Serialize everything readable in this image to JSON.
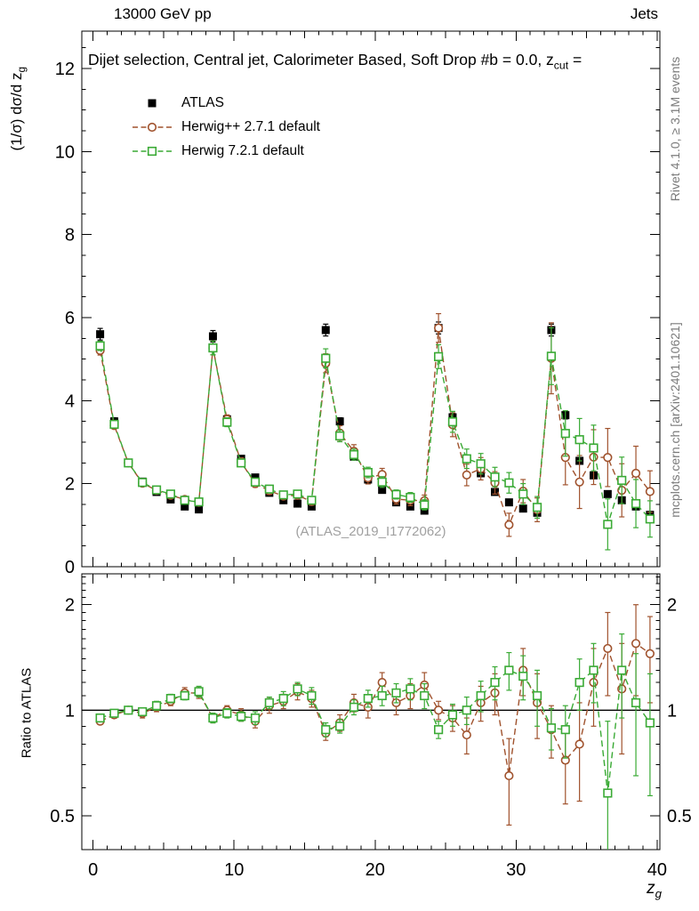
{
  "header": {
    "left": "13000 GeV pp",
    "right": "Jets"
  },
  "title": {
    "text": "Dijet selection, Central jet, Calorimeter Based, Soft Drop #b = 0.0, z",
    "sub": "cut",
    "tail": " ="
  },
  "axis_labels": {
    "y_main": "(1/σ) dσ/d z",
    "y_main_sub": "g",
    "ratio": "Ratio to ATLAS",
    "x": "z",
    "x_sub": "g"
  },
  "side_texts": {
    "top": "Rivet 4.1.0, ≥ 3.1M events",
    "bottom": "mcplots.cern.ch [arXiv:2401.10621]"
  },
  "watermark": "(ATLAS_2019_I1772062)",
  "legend": {
    "items": [
      {
        "label": "ATLAS",
        "marker": "filled-square",
        "color": "#000000"
      },
      {
        "label": "Herwig++ 2.7.1 default",
        "marker": "open-circle",
        "color": "#a0522d",
        "line": "dashed"
      },
      {
        "label": "Herwig 7.2.1 default",
        "marker": "open-square",
        "color": "#3aaa35",
        "line": "dashed"
      }
    ]
  },
  "chart_data": {
    "type": "line",
    "title": "Dijet selection, Central jet, Calorimeter Based, Soft Drop #b = 0.0, z_cut",
    "xlabel": "z_g",
    "ylabel": "(1/σ) dσ/d z_g",
    "ratio_label": "Ratio to ATLAS",
    "legend_position": "upper-left",
    "x": [
      0.5,
      1.5,
      2.5,
      3.5,
      4.5,
      5.5,
      6.5,
      7.5,
      8.5,
      9.5,
      10.5,
      11.5,
      12.5,
      13.5,
      14.5,
      15.5,
      16.5,
      17.5,
      18.5,
      19.5,
      20.5,
      21.5,
      22.5,
      23.5,
      24.5,
      25.5,
      26.5,
      27.5,
      28.5,
      29.5,
      30.5,
      31.5,
      32.5,
      33.5,
      34.5,
      35.5,
      36.5,
      37.5,
      38.5,
      39.5
    ],
    "axes": {
      "x": {
        "lim": [
          -0.8,
          40.2
        ],
        "ticks": [
          0,
          10,
          20,
          30,
          40
        ]
      },
      "main": {
        "scale": "linear",
        "lim": [
          0,
          12.9
        ],
        "ticks": [
          0,
          2,
          4,
          6,
          8,
          10,
          12
        ]
      },
      "ratio": {
        "scale": "log",
        "lim": [
          0.4,
          2.45
        ],
        "ticks": [
          0.5,
          1,
          2
        ],
        "tick_labels": [
          "0.5",
          "1",
          "2"
        ],
        "minor": [
          0.4,
          0.6,
          0.7,
          0.8,
          0.9,
          1.1,
          1.2,
          1.3,
          1.4,
          1.5,
          1.6,
          1.7,
          1.8,
          1.9,
          2.1,
          2.2,
          2.3,
          2.4
        ]
      }
    },
    "series": [
      {
        "name": "ATLAS",
        "marker": "filled-square",
        "color": "#000000",
        "err_frac": 0.025,
        "values": [
          5.6,
          3.5,
          2.5,
          2.05,
          1.8,
          1.62,
          1.45,
          1.38,
          5.55,
          3.55,
          2.6,
          2.15,
          1.78,
          1.6,
          1.52,
          1.45,
          5.7,
          3.5,
          2.65,
          2.1,
          1.85,
          1.55,
          1.45,
          1.35,
          5.75,
          3.6,
          2.6,
          2.25,
          1.8,
          1.55,
          1.4,
          1.3,
          5.7,
          3.65,
          2.55,
          2.2,
          1.75,
          1.6,
          1.45,
          1.25
        ]
      },
      {
        "name": "Herwig++ 2.7.1 default",
        "marker": "open-circle",
        "color": "#a0522d",
        "line": "dashed",
        "values": [
          5.21,
          3.4,
          2.5,
          2.01,
          1.84,
          1.72,
          1.62,
          1.55,
          5.27,
          3.55,
          2.52,
          2.0,
          1.83,
          1.7,
          1.72,
          1.57,
          4.9,
          3.22,
          2.78,
          2.14,
          2.22,
          1.63,
          1.6,
          1.59,
          5.75,
          3.42,
          2.21,
          2.36,
          2.02,
          1.01,
          1.82,
          1.37,
          5.02,
          2.63,
          2.04,
          2.64,
          2.63,
          1.84,
          2.25,
          1.81
        ],
        "ratio": [
          0.93,
          0.97,
          1.0,
          0.98,
          1.02,
          1.06,
          1.12,
          1.12,
          0.95,
          1.0,
          0.97,
          0.93,
          1.03,
          1.06,
          1.13,
          1.08,
          0.86,
          0.92,
          1.05,
          1.02,
          1.2,
          1.05,
          1.1,
          1.18,
          1.0,
          0.95,
          0.85,
          1.05,
          1.12,
          0.65,
          1.3,
          1.05,
          0.88,
          0.72,
          0.8,
          1.2,
          1.5,
          1.15,
          1.55,
          1.45
        ],
        "ratio_err": [
          0.02,
          0.02,
          0.02,
          0.03,
          0.03,
          0.03,
          0.04,
          0.04,
          0.03,
          0.03,
          0.04,
          0.04,
          0.05,
          0.05,
          0.06,
          0.06,
          0.04,
          0.05,
          0.06,
          0.07,
          0.08,
          0.08,
          0.09,
          0.1,
          0.06,
          0.08,
          0.1,
          0.12,
          0.15,
          0.18,
          0.2,
          0.22,
          0.15,
          0.18,
          0.25,
          0.3,
          0.4,
          0.4,
          0.45,
          0.4
        ]
      },
      {
        "name": "Herwig 7.2.1 default",
        "marker": "open-square",
        "color": "#3aaa35",
        "line": "dashed",
        "values": [
          5.32,
          3.43,
          2.5,
          2.03,
          1.85,
          1.75,
          1.6,
          1.56,
          5.27,
          3.48,
          2.5,
          2.04,
          1.87,
          1.73,
          1.75,
          1.6,
          5.02,
          3.15,
          2.7,
          2.27,
          2.04,
          1.74,
          1.67,
          1.49,
          5.06,
          3.49,
          2.6,
          2.48,
          2.16,
          2.02,
          1.75,
          1.43,
          5.07,
          3.21,
          3.06,
          2.86,
          1.02,
          2.08,
          1.52,
          1.15
        ],
        "ratio": [
          0.95,
          0.98,
          1.0,
          0.99,
          1.03,
          1.08,
          1.1,
          1.13,
          0.95,
          0.98,
          0.96,
          0.95,
          1.05,
          1.08,
          1.15,
          1.1,
          0.88,
          0.9,
          1.02,
          1.08,
          1.1,
          1.12,
          1.15,
          1.1,
          0.88,
          0.97,
          1.0,
          1.1,
          1.2,
          1.3,
          1.25,
          1.1,
          0.89,
          0.88,
          1.2,
          1.3,
          0.58,
          1.3,
          1.05,
          0.92
        ],
        "ratio_err": [
          0.02,
          0.02,
          0.02,
          0.02,
          0.03,
          0.03,
          0.03,
          0.04,
          0.03,
          0.03,
          0.03,
          0.04,
          0.04,
          0.05,
          0.05,
          0.06,
          0.04,
          0.04,
          0.05,
          0.06,
          0.07,
          0.07,
          0.08,
          0.09,
          0.05,
          0.07,
          0.09,
          0.11,
          0.13,
          0.16,
          0.18,
          0.2,
          0.12,
          0.15,
          0.2,
          0.25,
          0.35,
          0.35,
          0.4,
          0.35
        ]
      }
    ]
  }
}
